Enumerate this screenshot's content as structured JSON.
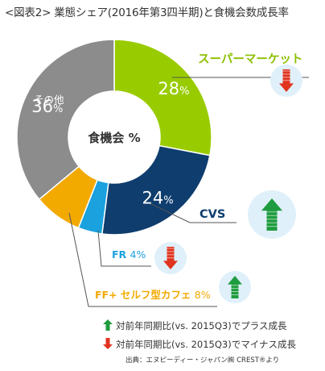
{
  "title": "<図表2> 業態シェア(2016年第3四半期)と食機会数成長率",
  "center_label": "食機会 %",
  "chart_data": {
    "type": "pie",
    "center_label": "食機会 %",
    "slices": [
      {
        "name": "スーパーマーケット",
        "value": 28,
        "color": "#99cc00",
        "growth": "down",
        "label_color": "#8cbf00"
      },
      {
        "name": "CVS",
        "value": 24,
        "color": "#0e3d6e",
        "growth": "up",
        "label_color": "#0e3d6e"
      },
      {
        "name": "FR",
        "value": 4,
        "color": "#1aa1de",
        "growth": "down",
        "label_color": "#1aa1de"
      },
      {
        "name": "FF+ セルフ型カフェ",
        "value": 8,
        "color": "#f2a900",
        "growth": "up",
        "label_color": "#f2a900"
      },
      {
        "name": "その他",
        "value": 36,
        "color": "#8c8c8c",
        "growth": null,
        "label_color": "#ffffff"
      }
    ]
  },
  "legend": [
    {
      "icon": "up-arrow-icon",
      "text": "対前年同期比(vs. 2015Q3)でプラス成長"
    },
    {
      "icon": "down-arrow-icon",
      "text": "対前年同期比(vs. 2015Q3)でマイナス成長"
    }
  ],
  "source": "出典：エヌピーディー・ジャパン㈱ CREST®より",
  "colors": {
    "up_arrow": "#1f9c3f",
    "down_arrow": "#e0341f",
    "circle_bg": "#dff0fa",
    "leader": "#555555"
  }
}
